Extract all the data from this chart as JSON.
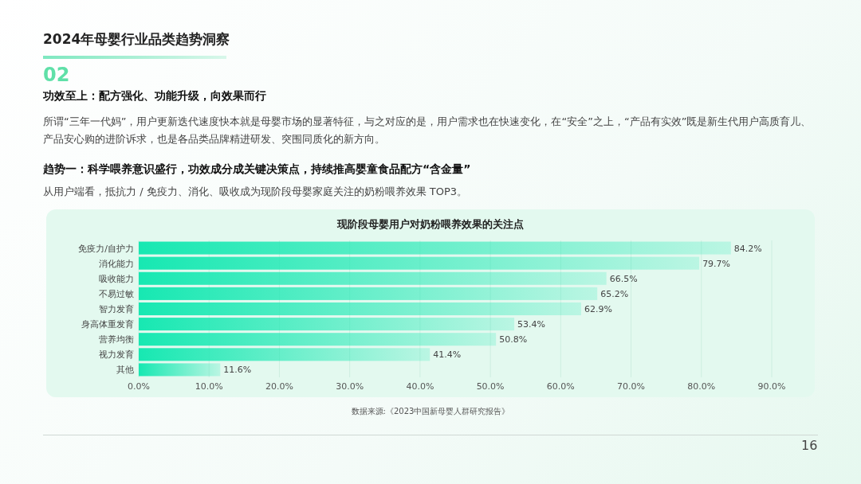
{
  "chart_data": {
    "type": "bar",
    "orientation": "horizontal",
    "title": "现阶段母婴用户对奶粉喂养效果的关注点",
    "categories": [
      "免疫力/自护力",
      "消化能力",
      "吸收能力",
      "不易过敏",
      "智力发育",
      "身高体重发育",
      "营养均衡",
      "视力发育",
      "其他"
    ],
    "values": [
      84.2,
      79.7,
      66.5,
      65.2,
      62.9,
      53.4,
      50.8,
      41.4,
      11.6
    ],
    "value_labels": [
      "84.2%",
      "79.7%",
      "66.5%",
      "65.2%",
      "62.9%",
      "53.4%",
      "50.8%",
      "41.4%",
      "11.6%"
    ],
    "color": "#17e8b2",
    "xlim": [
      0,
      90
    ],
    "xticks": [
      {
        "value": 0,
        "label": "0.0%"
      },
      {
        "value": 10,
        "label": "10.0%"
      },
      {
        "value": 20,
        "label": "20.0%"
      },
      {
        "value": 30,
        "label": "30.0%"
      },
      {
        "value": 40,
        "label": "40.0%"
      },
      {
        "value": 50,
        "label": "50.0%"
      },
      {
        "value": 60,
        "label": "60.0%"
      },
      {
        "value": 70,
        "label": "70.0%"
      },
      {
        "value": 80,
        "label": "80.0%"
      },
      {
        "value": 90,
        "label": "90.0%"
      }
    ],
    "grid": "x",
    "annotations": [
      "2024年母婴行业品类趋势洞察",
      "02",
      "功效至上：配方强化、功能升级，向效果而行",
      "所谓“三年一代妈”，用户更新迭代速度快本就是母婴市场的显著特征，与之对应的是，用户需求也在快速变化，在“安全”之上，“产品有实效”既是新生代用户高质育儿、产品安心购的进阶诉求，也是各品类品牌精进研发、突围同质化的新方向。",
      "趋势一：科学喂养意识盛行，功效成分成关键决策点，持续推高婴童食品配方“含金量”",
      "从用户端看，抵抗力 / 免疫力、消化、吸收成为现阶段母婴家庭关注的奶粉喂养效果 TOP3。",
      "数据来源:《2023中国新母婴人群研究报告》",
      "16"
    ]
  }
}
